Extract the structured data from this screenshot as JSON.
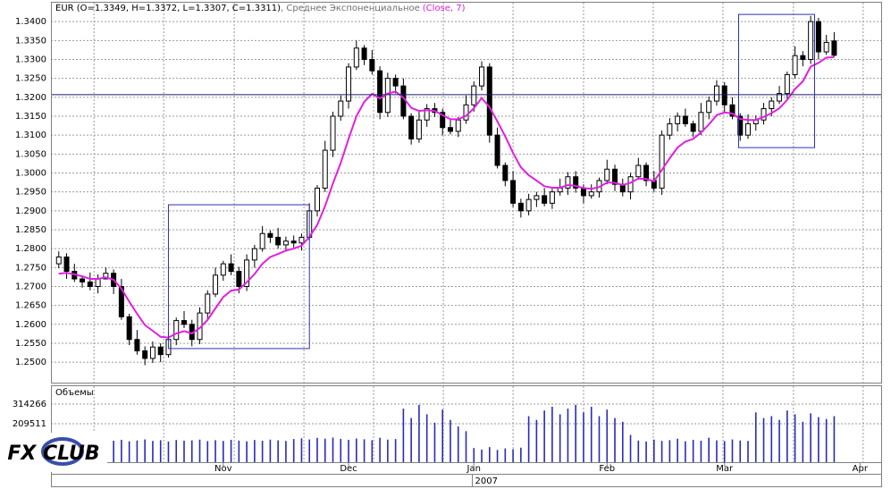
{
  "chart_data": {
    "type": "candlestick",
    "title": "EUR (O=1.3349, H=1.3372, L=1.3307, C=1.3311)",
    "indicator": ", Среднее Экспоненциальное",
    "indicator_params": "(Close, 7)",
    "volume_label": "Объемы",
    "logo": "FX CLUB",
    "up_color": "#ffffff",
    "down_color": "#000000",
    "ema_color": "#e020e0",
    "volume_color": "#2a2ab8",
    "box_color": "#3030b0",
    "hline_color": "#1a1a6e",
    "grid": true,
    "xlim": [
      -1,
      105
    ],
    "ylim": [
      1.2446,
      1.345
    ],
    "yticks": [
      {
        "value": 1.25,
        "label": "1.2500"
      },
      {
        "value": 1.255,
        "label": "1.2550"
      },
      {
        "value": 1.26,
        "label": "1.2600"
      },
      {
        "value": 1.265,
        "label": "1.2650"
      },
      {
        "value": 1.27,
        "label": "1.2700"
      },
      {
        "value": 1.275,
        "label": "1.2750"
      },
      {
        "value": 1.28,
        "label": "1.2800"
      },
      {
        "value": 1.285,
        "label": "1.2850"
      },
      {
        "value": 1.29,
        "label": "1.2900"
      },
      {
        "value": 1.295,
        "label": "1.2950"
      },
      {
        "value": 1.3,
        "label": "1.3000"
      },
      {
        "value": 1.305,
        "label": "1.3050"
      },
      {
        "value": 1.31,
        "label": "1.3100"
      },
      {
        "value": 1.315,
        "label": "1.3150"
      },
      {
        "value": 1.32,
        "label": "1.3200"
      },
      {
        "value": 1.325,
        "label": "1.3250"
      },
      {
        "value": 1.33,
        "label": "1.3300"
      },
      {
        "value": 1.335,
        "label": "1.3350"
      },
      {
        "value": 1.34,
        "label": "1.3400"
      }
    ],
    "xgrid": [
      4.5,
      13.4,
      22.4,
      31.3,
      40.2,
      49.1,
      58,
      67,
      75.9,
      84.8,
      93.8,
      102.7
    ],
    "xticks": [
      {
        "value": 21,
        "label": "Nov"
      },
      {
        "value": 37,
        "label": "Dec"
      },
      {
        "value": 53,
        "label": "Jan"
      },
      {
        "value": 70,
        "label": "Feb"
      },
      {
        "value": 85,
        "label": "Mar"
      },
      {
        "value": 102.3,
        "label": "Apr"
      }
    ],
    "year_ticks": [
      {
        "value": 52.8,
        "label": "2007"
      }
    ],
    "vol_ylim": [
      0,
      400000
    ],
    "vol_yticks": [
      209511,
      314266
    ],
    "hline": 1.3207,
    "boxes": [
      {
        "x": [
          14,
          32
        ],
        "y": [
          1.2536,
          1.2916
        ]
      },
      {
        "x": [
          86.8,
          96.5
        ],
        "y": [
          1.3067,
          1.3419
        ]
      }
    ],
    "open": [
      1.276,
      1.2778,
      1.274,
      1.272,
      1.2712,
      1.27,
      1.272,
      1.2735,
      1.27,
      1.262,
      1.256,
      1.253,
      1.251,
      1.254,
      1.252,
      1.256,
      1.261,
      1.26,
      1.256,
      1.263,
      1.268,
      1.273,
      1.276,
      1.274,
      1.27,
      1.277,
      1.28,
      1.284,
      1.283,
      1.281,
      1.282,
      1.2815,
      1.283,
      1.29,
      1.296,
      1.306,
      1.315,
      1.319,
      1.328,
      1.333,
      1.33,
      1.327,
      1.316,
      1.325,
      1.323,
      1.315,
      1.309,
      1.314,
      1.317,
      1.316,
      1.312,
      1.311,
      1.314,
      1.318,
      1.323,
      1.328,
      1.31,
      1.302,
      1.298,
      1.292,
      1.29,
      1.293,
      1.294,
      1.292,
      1.295,
      1.296,
      1.299,
      1.296,
      1.294,
      1.295,
      1.298,
      1.301,
      1.297,
      1.295,
      1.299,
      1.302,
      1.298,
      1.296,
      1.31,
      1.313,
      1.315,
      1.313,
      1.311,
      1.316,
      1.319,
      1.323,
      1.318,
      1.315,
      1.31,
      1.313,
      1.314,
      1.317,
      1.319,
      1.321,
      1.326,
      1.331,
      1.33,
      1.34,
      1.332,
      1.3349
    ],
    "high": [
      1.2793,
      1.2788,
      1.276,
      1.2728,
      1.2737,
      1.2732,
      1.275,
      1.2745,
      1.272,
      1.2628,
      1.2585,
      1.2542,
      1.2555,
      1.255,
      1.258,
      1.2618,
      1.2635,
      1.2612,
      1.2645,
      1.269,
      1.275,
      1.2768,
      1.2785,
      1.2752,
      1.2785,
      1.281,
      1.286,
      1.2848,
      1.2855,
      1.2832,
      1.2835,
      1.284,
      1.292,
      1.2968,
      1.3085,
      1.3162,
      1.3205,
      1.329,
      1.335,
      1.3338,
      1.3325,
      1.3282,
      1.3265,
      1.326,
      1.325,
      1.3158,
      1.3165,
      1.3182,
      1.3185,
      1.317,
      1.314,
      1.3148,
      1.3205,
      1.3242,
      1.3295,
      1.329,
      1.312,
      1.3028,
      1.3005,
      1.2932,
      1.2945,
      1.295,
      1.296,
      1.2958,
      1.2985,
      1.3002,
      1.3005,
      1.297,
      1.297,
      1.2988,
      1.3035,
      1.3022,
      1.2985,
      1.3,
      1.304,
      1.3028,
      1.3005,
      1.3112,
      1.3145,
      1.316,
      1.317,
      1.3138,
      1.3185,
      1.3202,
      1.3245,
      1.324,
      1.32,
      1.3158,
      1.3155,
      1.3152,
      1.3185,
      1.32,
      1.323,
      1.3268,
      1.3335,
      1.3322,
      1.3415,
      1.341,
      1.3365,
      1.3372
    ],
    "low": [
      1.2748,
      1.272,
      1.2712,
      1.2697,
      1.269,
      1.2682,
      1.2723,
      1.268,
      1.2612,
      1.2545,
      1.252,
      1.2492,
      1.2498,
      1.25,
      1.2512,
      1.2545,
      1.259,
      1.2542,
      1.2548,
      1.261,
      1.2672,
      1.2715,
      1.273,
      1.2682,
      1.2688,
      1.275,
      1.2792,
      1.2815,
      1.28,
      1.2792,
      1.2803,
      1.2795,
      1.2822,
      1.2885,
      1.295,
      1.3042,
      1.3138,
      1.317,
      1.3272,
      1.3285,
      1.326,
      1.3142,
      1.3148,
      1.321,
      1.3142,
      1.3075,
      1.308,
      1.3122,
      1.3148,
      1.31,
      1.3102,
      1.3095,
      1.313,
      1.3162,
      1.3218,
      1.308,
      1.3012,
      1.2965,
      1.291,
      1.2882,
      1.2888,
      1.291,
      1.2912,
      1.2905,
      1.294,
      1.2942,
      1.2948,
      1.292,
      1.2932,
      1.2935,
      1.297,
      1.2952,
      1.2938,
      1.293,
      1.2982,
      1.2965,
      1.295,
      1.2942,
      1.3088,
      1.311,
      1.3122,
      1.3095,
      1.31,
      1.3142,
      1.3178,
      1.316,
      1.3142,
      1.3085,
      1.309,
      1.3112,
      1.3128,
      1.315,
      1.3182,
      1.3195,
      1.325,
      1.3282,
      1.3288,
      1.33,
      1.3312,
      1.3307
    ],
    "close": [
      1.2778,
      1.274,
      1.272,
      1.2712,
      1.27,
      1.272,
      1.2735,
      1.27,
      1.262,
      1.256,
      1.253,
      1.251,
      1.254,
      1.252,
      1.256,
      1.261,
      1.26,
      1.256,
      1.263,
      1.268,
      1.273,
      1.276,
      1.274,
      1.27,
      1.277,
      1.28,
      1.284,
      1.283,
      1.281,
      1.282,
      1.2815,
      1.283,
      1.29,
      1.296,
      1.306,
      1.315,
      1.319,
      1.328,
      1.333,
      1.33,
      1.327,
      1.316,
      1.325,
      1.323,
      1.315,
      1.309,
      1.314,
      1.317,
      1.316,
      1.312,
      1.311,
      1.314,
      1.318,
      1.323,
      1.328,
      1.31,
      1.302,
      1.298,
      1.292,
      1.29,
      1.293,
      1.294,
      1.292,
      1.295,
      1.296,
      1.299,
      1.296,
      1.294,
      1.295,
      1.298,
      1.301,
      1.297,
      1.295,
      1.299,
      1.302,
      1.298,
      1.296,
      1.31,
      1.313,
      1.315,
      1.313,
      1.311,
      1.316,
      1.319,
      1.323,
      1.318,
      1.315,
      1.31,
      1.313,
      1.314,
      1.317,
      1.319,
      1.321,
      1.326,
      1.331,
      1.33,
      1.34,
      1.332,
      1.3345,
      1.3311
    ],
    "ema": [
      1.2734,
      1.2736,
      1.2732,
      1.2727,
      1.272,
      1.272,
      1.2724,
      1.2718,
      1.2694,
      1.266,
      1.2628,
      1.2598,
      1.2583,
      1.2567,
      1.2565,
      1.2576,
      1.2582,
      1.2576,
      1.259,
      1.2612,
      1.2642,
      1.2672,
      1.2689,
      1.2692,
      1.2711,
      1.2733,
      1.276,
      1.2778,
      1.2786,
      1.2795,
      1.28,
      1.2808,
      1.2831,
      1.2863,
      1.2912,
      1.2972,
      1.3027,
      1.309,
      1.315,
      1.3188,
      1.3209,
      1.3197,
      1.321,
      1.3215,
      1.3199,
      1.3172,
      1.3164,
      1.3166,
      1.3164,
      1.3153,
      1.3142,
      1.3142,
      1.3151,
      1.3171,
      1.3198,
      1.3174,
      1.3136,
      1.3097,
      1.3053,
      1.3015,
      1.2994,
      1.298,
      1.2965,
      1.2961,
      1.2961,
      1.2968,
      1.2966,
      1.296,
      1.2958,
      1.2963,
      1.2975,
      1.2974,
      1.2968,
      1.2974,
      1.2985,
      1.2984,
      1.2978,
      1.3008,
      1.3039,
      1.3067,
      1.3083,
      1.309,
      1.3107,
      1.3128,
      1.3153,
      1.316,
      1.3157,
      1.3143,
      1.314,
      1.314,
      1.3148,
      1.3158,
      1.3171,
      1.3193,
      1.3222,
      1.3242,
      1.3281,
      1.3291,
      1.3305,
      1.3306
    ],
    "volume": [
      118000,
      122000,
      115000,
      120000,
      125000,
      117000,
      121000,
      119000,
      124000,
      116000,
      120000,
      126000,
      118000,
      122000,
      115000,
      123000,
      119000,
      121000,
      125000,
      117000,
      122000,
      118000,
      124000,
      120000,
      116000,
      123000,
      119000,
      125000,
      121000,
      118000,
      128000,
      132000,
      126000,
      134000,
      130000,
      136000,
      129000,
      124000,
      131000,
      127000,
      122000,
      135000,
      125000,
      128000,
      290000,
      240000,
      310000,
      260000,
      215000,
      285000,
      230000,
      195000,
      170000,
      80000,
      72000,
      85000,
      70000,
      78000,
      74000,
      82000,
      250000,
      230000,
      280000,
      300000,
      260000,
      290000,
      310000,
      270000,
      300000,
      250000,
      285000,
      240000,
      220000,
      150000,
      120000,
      115000,
      125000,
      118000,
      122000,
      130000,
      116000,
      124000,
      119000,
      135000,
      121000,
      117000,
      126000,
      120000,
      118000,
      270000,
      240000,
      250000,
      230000,
      280000,
      260000,
      220000,
      265000,
      245000,
      235000,
      250000
    ]
  }
}
